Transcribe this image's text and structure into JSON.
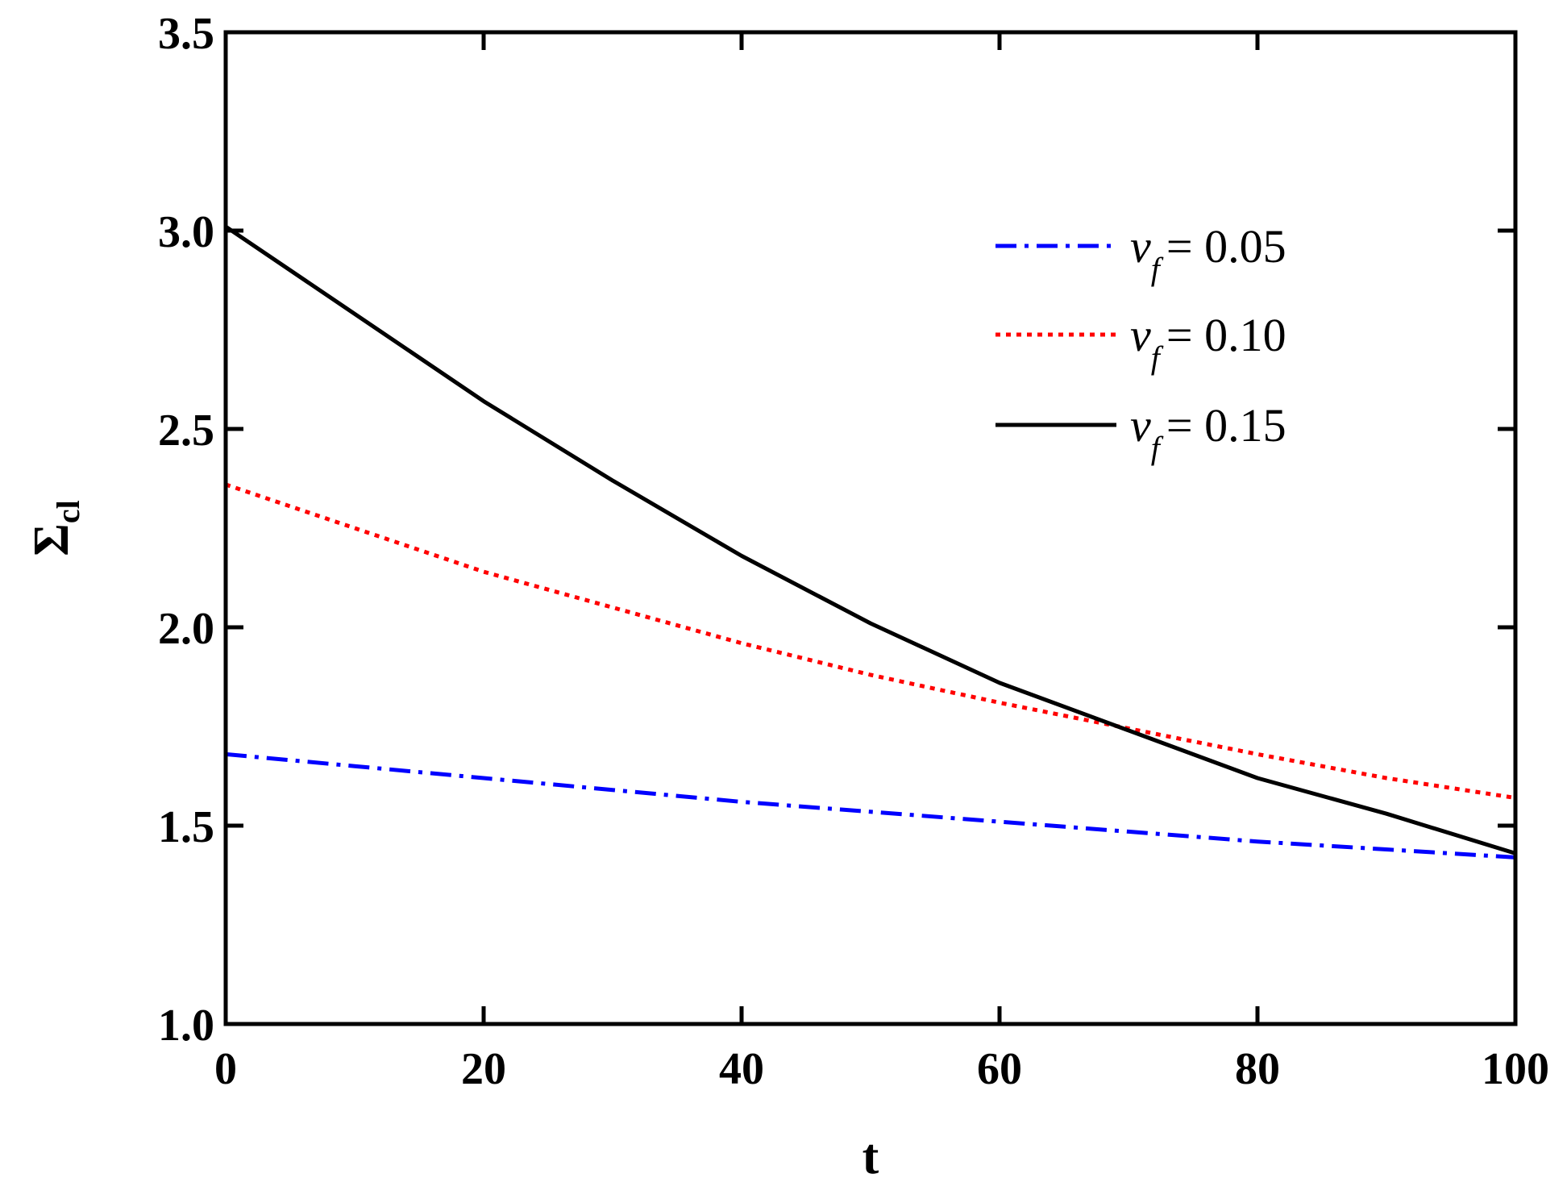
{
  "chart_data": {
    "type": "line",
    "title": "",
    "xlabel": "t",
    "ylabel": {
      "symbol": "Σ",
      "subscript": "cl"
    },
    "xlim": [
      0,
      100
    ],
    "ylim": [
      1.0,
      3.5
    ],
    "xticks": [
      0,
      20,
      40,
      60,
      80,
      100
    ],
    "yticks": [
      1.0,
      1.5,
      2.0,
      2.5,
      3.0,
      3.5
    ],
    "xtick_labels": [
      "0",
      "20",
      "40",
      "60",
      "80",
      "100"
    ],
    "ytick_labels": [
      "1.0",
      "1.5",
      "2.0",
      "2.5",
      "3.0",
      "3.5"
    ],
    "grid": false,
    "legend_position": "top-right",
    "series": [
      {
        "symbol": "v",
        "subscript": "f",
        "value_text": "= 0.05",
        "color": "#0000ff",
        "style": "dash-dot",
        "x": [
          0,
          10,
          20,
          30,
          40,
          50,
          60,
          70,
          80,
          90,
          100
        ],
        "y": [
          1.68,
          1.65,
          1.62,
          1.59,
          1.56,
          1.535,
          1.51,
          1.485,
          1.46,
          1.44,
          1.42
        ]
      },
      {
        "symbol": "v",
        "subscript": "f",
        "value_text": "= 0.10",
        "color": "#ff0000",
        "style": "dotted",
        "x": [
          0,
          10,
          20,
          30,
          40,
          50,
          60,
          70,
          80,
          90,
          100
        ],
        "y": [
          2.36,
          2.25,
          2.14,
          2.05,
          1.96,
          1.88,
          1.81,
          1.745,
          1.68,
          1.62,
          1.57
        ]
      },
      {
        "symbol": "v",
        "subscript": "f",
        "value_text": "= 0.15",
        "color": "#000000",
        "style": "solid",
        "x": [
          0,
          10,
          20,
          30,
          40,
          50,
          60,
          70,
          80,
          90,
          100
        ],
        "y": [
          3.01,
          2.79,
          2.57,
          2.37,
          2.18,
          2.01,
          1.86,
          1.74,
          1.62,
          1.53,
          1.43
        ]
      }
    ]
  }
}
